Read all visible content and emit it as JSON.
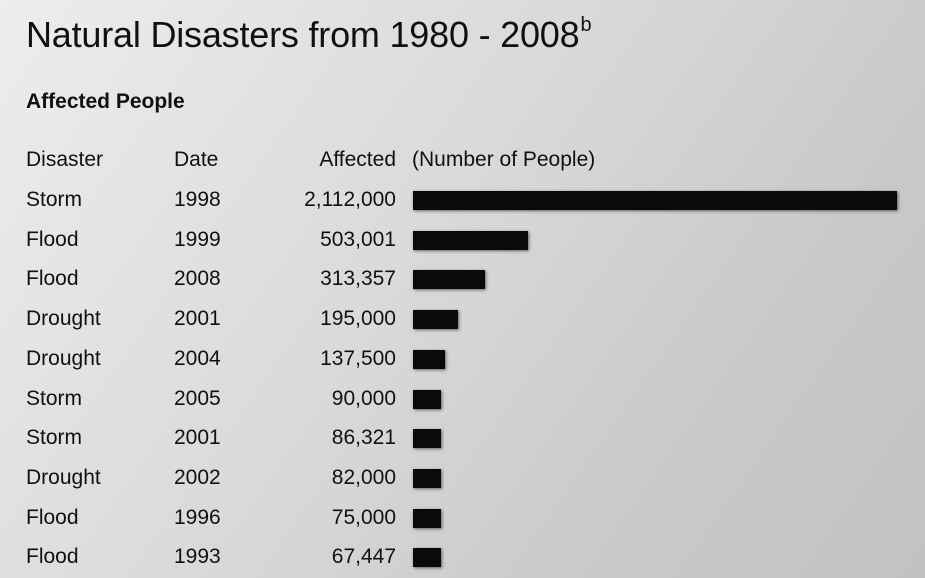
{
  "header": {
    "title": "Natural Disasters from 1980 - 2008",
    "title_superscript": "b",
    "subtitle": "Affected People"
  },
  "columns": {
    "disaster": "Disaster",
    "date": "Date",
    "affected": "Affected",
    "bar_label": "(Number of People)"
  },
  "chart_data": {
    "type": "bar",
    "orientation": "horizontal",
    "title": "Natural Disasters from 1980 - 2008",
    "subtitle": "Affected People",
    "xlabel": "(Number of People)",
    "ylabel": "",
    "grid": false,
    "bar_color": "#0a0a0a",
    "xlim": [
      0,
      2112000
    ],
    "rows": [
      {
        "disaster": "Storm",
        "date": "1998",
        "affected_label": "2,112,000",
        "value": 2112000
      },
      {
        "disaster": "Flood",
        "date": "1999",
        "affected_label": "503,001",
        "value": 503001
      },
      {
        "disaster": "Flood",
        "date": "2008",
        "affected_label": "313,357",
        "value": 313357
      },
      {
        "disaster": "Drought",
        "date": "2001",
        "affected_label": "195,000",
        "value": 195000
      },
      {
        "disaster": "Drought",
        "date": "2004",
        "affected_label": "137,500",
        "value": 137500
      },
      {
        "disaster": "Storm",
        "date": "2005",
        "affected_label": "90,000",
        "value": 90000
      },
      {
        "disaster": "Storm",
        "date": "2001",
        "affected_label": "86,321",
        "value": 86321
      },
      {
        "disaster": "Drought",
        "date": "2002",
        "affected_label": "82,000",
        "value": 82000
      },
      {
        "disaster": "Flood",
        "date": "1996",
        "affected_label": "75,000",
        "value": 75000
      },
      {
        "disaster": "Flood",
        "date": "1993",
        "affected_label": "67,447",
        "value": 67447
      }
    ]
  }
}
